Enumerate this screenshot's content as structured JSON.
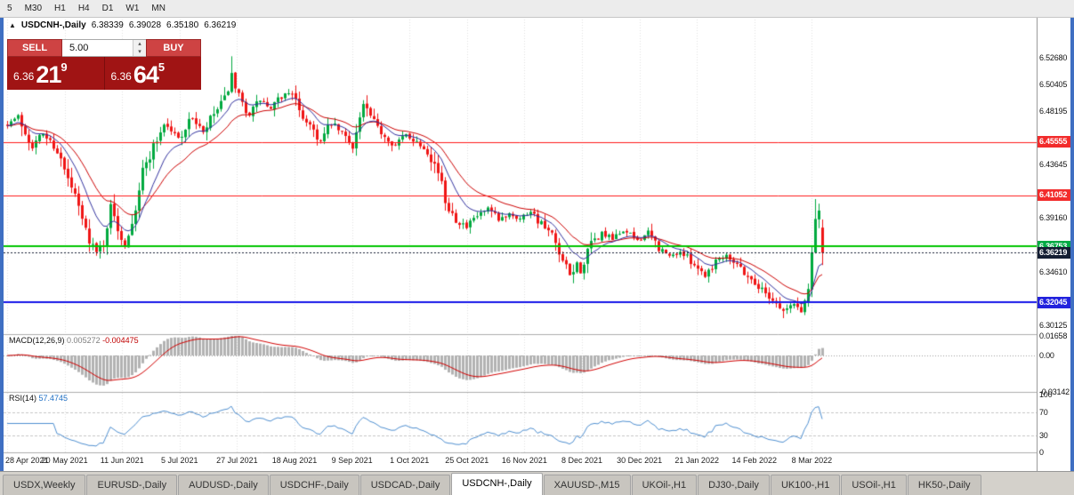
{
  "toolbar": {
    "timeframes": [
      "5",
      "M30",
      "H1",
      "H4",
      "D1",
      "W1",
      "MN"
    ]
  },
  "chart": {
    "header": {
      "collapse_icon": "▲",
      "symbol": "USDCNH-,Daily",
      "open": "6.38339",
      "high": "6.39028",
      "low": "6.35180",
      "close": "6.36219"
    },
    "trade_widget": {
      "sell_label": "SELL",
      "buy_label": "BUY",
      "volume": "5.00",
      "spin_up": "▴",
      "spin_down": "▾",
      "sell_price": {
        "prefix": "6.36",
        "big": "21",
        "sup": "9"
      },
      "buy_price": {
        "prefix": "6.36",
        "big": "64",
        "sup": "5"
      }
    }
  },
  "macd_panel": {
    "name": "MACD(12,26,9)",
    "value1": "0.005272",
    "value2": "-0.004475"
  },
  "rsi_panel": {
    "name": "RSI(14)",
    "value": "57.4745"
  },
  "tabs": [
    {
      "label": "USDX,Weekly",
      "active": false
    },
    {
      "label": "EURUSD-,Daily",
      "active": false
    },
    {
      "label": "AUDUSD-,Daily",
      "active": false
    },
    {
      "label": "USDCHF-,Daily",
      "active": false
    },
    {
      "label": "USDCAD-,Daily",
      "active": false
    },
    {
      "label": "USDCNH-,Daily",
      "active": true
    },
    {
      "label": "XAUUSD-,M15",
      "active": false
    },
    {
      "label": "UKOil-,H1",
      "active": false
    },
    {
      "label": "DJ30-,Daily",
      "active": false
    },
    {
      "label": "UK100-,H1",
      "active": false
    },
    {
      "label": "USOil-,H1",
      "active": false
    },
    {
      "label": "HK50-,Daily",
      "active": false
    }
  ],
  "chart_data": {
    "type": "candlestick",
    "symbol": "USDCNH-",
    "timeframe": "Daily",
    "ohlc_current": {
      "open": 6.38339,
      "high": 6.39028,
      "low": 6.3518,
      "close": 6.36219
    },
    "ylim": [
      6.295,
      6.55
    ],
    "num_candles": 230,
    "close_anchors": [
      [
        0,
        6.471
      ],
      [
        3,
        6.477
      ],
      [
        7,
        6.452
      ],
      [
        10,
        6.463
      ],
      [
        14,
        6.449
      ],
      [
        16,
        6.431
      ],
      [
        19,
        6.409
      ],
      [
        22,
        6.381
      ],
      [
        25,
        6.362
      ],
      [
        27,
        6.371
      ],
      [
        29,
        6.401
      ],
      [
        31,
        6.383
      ],
      [
        33,
        6.369
      ],
      [
        36,
        6.401
      ],
      [
        38,
        6.431
      ],
      [
        41,
        6.452
      ],
      [
        44,
        6.471
      ],
      [
        48,
        6.459
      ],
      [
        52,
        6.476
      ],
      [
        55,
        6.463
      ],
      [
        58,
        6.479
      ],
      [
        61,
        6.491
      ],
      [
        63,
        6.512
      ],
      [
        64,
        6.498
      ],
      [
        66,
        6.487
      ],
      [
        68,
        6.479
      ],
      [
        71,
        6.491
      ],
      [
        74,
        6.483
      ],
      [
        77,
        6.494
      ],
      [
        80,
        6.499
      ],
      [
        82,
        6.479
      ],
      [
        85,
        6.471
      ],
      [
        88,
        6.456
      ],
      [
        91,
        6.471
      ],
      [
        94,
        6.463
      ],
      [
        97,
        6.453
      ],
      [
        100,
        6.487
      ],
      [
        103,
        6.471
      ],
      [
        106,
        6.461
      ],
      [
        109,
        6.453
      ],
      [
        112,
        6.462
      ],
      [
        115,
        6.456
      ],
      [
        118,
        6.449
      ],
      [
        121,
        6.431
      ],
      [
        123,
        6.406
      ],
      [
        126,
        6.391
      ],
      [
        129,
        6.383
      ],
      [
        132,
        6.393
      ],
      [
        135,
        6.399
      ],
      [
        138,
        6.389
      ],
      [
        141,
        6.396
      ],
      [
        144,
        6.391
      ],
      [
        147,
        6.398
      ],
      [
        150,
        6.386
      ],
      [
        153,
        6.376
      ],
      [
        155,
        6.359
      ],
      [
        158,
        6.343
      ],
      [
        160,
        6.353
      ],
      [
        161,
        6.346
      ],
      [
        164,
        6.369
      ],
      [
        167,
        6.379
      ],
      [
        170,
        6.373
      ],
      [
        173,
        6.381
      ],
      [
        177,
        6.373
      ],
      [
        180,
        6.379
      ],
      [
        183,
        6.366
      ],
      [
        186,
        6.359
      ],
      [
        189,
        6.363
      ],
      [
        193,
        6.353
      ],
      [
        196,
        6.343
      ],
      [
        199,
        6.356
      ],
      [
        202,
        6.361
      ],
      [
        205,
        6.353
      ],
      [
        209,
        6.339
      ],
      [
        212,
        6.331
      ],
      [
        215,
        6.323
      ],
      [
        218,
        6.313
      ],
      [
        221,
        6.319
      ],
      [
        223,
        6.313
      ],
      [
        225,
        6.331
      ],
      [
        226,
        6.366
      ],
      [
        227,
        6.393
      ],
      [
        228,
        6.399
      ],
      [
        229,
        6.362
      ]
    ],
    "y_axis_labels": [
      {
        "text": "6.52680",
        "price": 6.5268
      },
      {
        "text": "6.50405",
        "price": 6.50405
      },
      {
        "text": "6.48195",
        "price": 6.48195
      },
      {
        "text": "6.43645",
        "price": 6.43645
      },
      {
        "text": "6.39160",
        "price": 6.3916
      },
      {
        "text": "6.34610",
        "price": 6.3461
      },
      {
        "text": "6.30125",
        "price": 6.30125
      }
    ],
    "price_badges": [
      {
        "text": "6.45555",
        "price": 6.45555,
        "bg": "#f22b2b"
      },
      {
        "text": "6.41052",
        "price": 6.41052,
        "bg": "#f22b2b"
      },
      {
        "text": "6.36753",
        "price": 6.36753,
        "bg": "#00ab44"
      },
      {
        "text": "6.36219",
        "price": 6.36219,
        "bg": "#141e33"
      },
      {
        "text": "6.32045",
        "price": 6.32045,
        "bg": "#2222dd"
      }
    ],
    "hlines": [
      {
        "price": 6.45555,
        "color": "#ff1a1a",
        "width": 1
      },
      {
        "price": 6.41052,
        "color": "#ff1a1a",
        "width": 1
      },
      {
        "price": 6.36753,
        "color": "#00c400",
        "width": 2
      },
      {
        "price": 6.32045,
        "color": "#1515e8",
        "width": 2
      }
    ],
    "current_price_line": {
      "price": 6.36219,
      "color": "#141e33"
    },
    "moving_averages": [
      {
        "period": 10,
        "color": "#32329e"
      },
      {
        "period": 21,
        "color": "#cc0000"
      }
    ],
    "x_labels": [
      "28 Apr 2021",
      "20 May 2021",
      "11 Jun 2021",
      "5 Jul 2021",
      "27 Jul 2021",
      "18 Aug 2021",
      "9 Sep 2021",
      "1 Oct 2021",
      "25 Oct 2021",
      "16 Nov 2021",
      "8 Dec 2021",
      "30 Dec 2021",
      "21 Jan 2022",
      "14 Feb 2022",
      "8 Mar 2022"
    ],
    "macd": {
      "fast": 12,
      "slow": 26,
      "signal": 9,
      "current_macd": 0.005272,
      "current_signal": -0.004475,
      "axis": [
        {
          "text": "0.01658",
          "value": 0.01658
        },
        {
          "text": "0.00",
          "value": 0
        },
        {
          "text": "-0.03142",
          "value": -0.03142
        }
      ]
    },
    "rsi": {
      "period": 14,
      "current": 57.4745,
      "levels": [
        70,
        30
      ],
      "axis": [
        {
          "text": "100",
          "value": 100
        },
        {
          "text": "70",
          "value": 70
        },
        {
          "text": "30",
          "value": 30
        },
        {
          "text": "0",
          "value": 0
        }
      ]
    }
  }
}
